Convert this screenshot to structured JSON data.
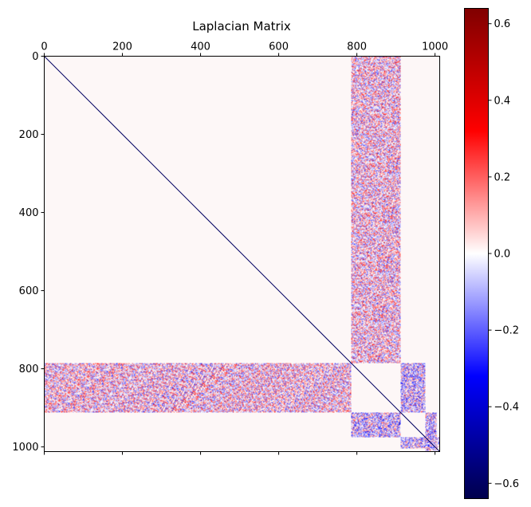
{
  "chart_data": {
    "type": "heatmap",
    "title": "Laplacian Matrix",
    "xlabel": "",
    "ylabel": "",
    "matrix_size": 1012,
    "xlim": [
      0,
      1012
    ],
    "ylim": [
      1012,
      0
    ],
    "x_ticks": [
      0,
      200,
      400,
      600,
      800,
      1000
    ],
    "y_ticks": [
      0,
      200,
      400,
      600,
      800,
      1000
    ],
    "x_tick_position": "top",
    "colormap": "seismic",
    "color_range": [
      -0.64,
      0.64
    ],
    "colorbar_ticks": [
      0.6,
      0.4,
      0.2,
      0.0,
      -0.2,
      -0.4,
      -0.6
    ],
    "colorbar_tick_labels": [
      "0.6",
      "0.4",
      "0.2",
      "0.0",
      "−0.2",
      "−0.4",
      "−0.6"
    ],
    "diagonal_value": -0.6,
    "background_value": 0.0,
    "blocks": [
      {
        "rows": [
          0,
          785
        ],
        "cols": [
          785,
          913
        ],
        "density": 0.85,
        "bias": 0.02
      },
      {
        "rows": [
          785,
          913
        ],
        "cols": [
          0,
          785
        ],
        "density": 0.85,
        "bias": 0.02
      },
      {
        "rows": [
          785,
          913
        ],
        "cols": [
          913,
          975
        ],
        "density": 0.9,
        "bias": -0.05
      },
      {
        "rows": [
          913,
          975
        ],
        "cols": [
          785,
          913
        ],
        "density": 0.9,
        "bias": -0.05
      },
      {
        "rows": [
          913,
          1003
        ],
        "cols": [
          975,
          1003
        ],
        "density": 0.9,
        "bias": -0.05
      },
      {
        "rows": [
          975,
          1003
        ],
        "cols": [
          913,
          975
        ],
        "density": 0.9,
        "bias": -0.05
      },
      {
        "rows": [
          1003,
          1012
        ],
        "cols": [
          975,
          1003
        ],
        "density": 0.6,
        "bias": -0.05
      },
      {
        "rows": [
          975,
          1003
        ],
        "cols": [
          1003,
          1012
        ],
        "density": 0.6,
        "bias": -0.05
      }
    ],
    "grid": false
  },
  "colors": {
    "axis": "#000000",
    "background": "#ffffff",
    "zero": "#fdf7f7"
  }
}
